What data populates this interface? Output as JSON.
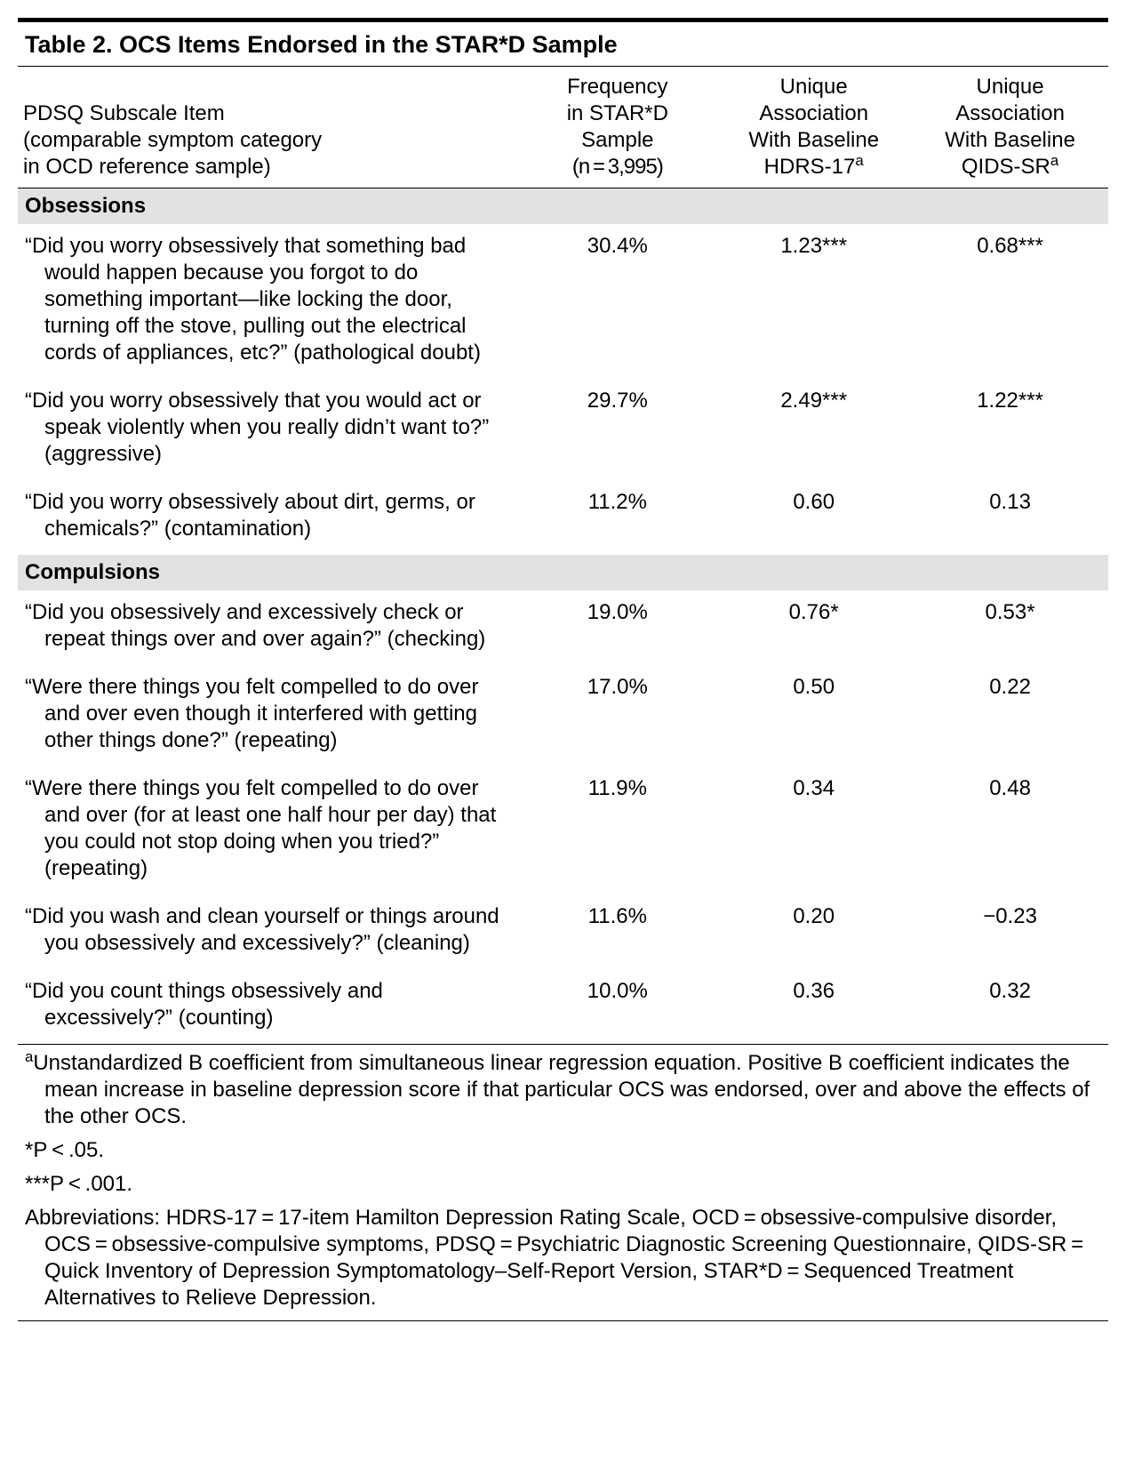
{
  "table": {
    "title": "Table 2. OCS Items Endorsed in the STAR*D Sample",
    "columns": {
      "item_lines": [
        "PDSQ Subscale Item",
        "(comparable symptom category",
        "in OCD reference sample)"
      ],
      "freq_lines": [
        "Frequency",
        "in STAR*D",
        "Sample",
        "(n = 3,995)"
      ],
      "hdrs_lines": [
        "Unique",
        "Association",
        "With Baseline",
        "HDRS-17"
      ],
      "qids_lines": [
        "Unique",
        "Association",
        "With Baseline",
        "QIDS-SR"
      ],
      "super_a": "a"
    },
    "widths": {
      "item": "46%",
      "freq": "18%",
      "hdrs": "18%",
      "qids": "18%"
    },
    "sections": [
      {
        "label": "Obsessions",
        "rows": [
          {
            "item": "“Did you worry obsessively that something bad would happen because you forgot to do something important—like locking the door, turning off the stove, pulling out the electrical cords of appliances, etc?” (pathological doubt)",
            "freq": "30.4%",
            "hdrs": "1.23***",
            "qids": "0.68***"
          },
          {
            "item": "“Did you worry obsessively that you would act or speak violently when you really didn’t want to?” (aggressive)",
            "freq": "29.7%",
            "hdrs": "2.49***",
            "qids": "1.22***"
          },
          {
            "item": "“Did you worry obsessively about dirt, germs, or chemicals?” (contamination)",
            "freq": "11.2%",
            "hdrs": "0.60",
            "qids": "0.13"
          }
        ]
      },
      {
        "label": "Compulsions",
        "rows": [
          {
            "item": "“Did you obsessively and excessively check or repeat things over and over again?” (checking)",
            "freq": "19.0%",
            "hdrs": "0.76*",
            "qids": "0.53*"
          },
          {
            "item": "“Were there things you felt compelled to do over and over even though it interfered with getting other things done?” (repeating)",
            "freq": "17.0%",
            "hdrs": "0.50",
            "qids": "0.22"
          },
          {
            "item": "“Were there things you felt compelled to do over and over (for at least one half hour per day) that you could not stop doing when you tried?” (repeating)",
            "freq": "11.9%",
            "hdrs": "0.34",
            "qids": "0.48"
          },
          {
            "item": "“Did you wash and clean yourself or things around you obsessively and excessively?” (cleaning)",
            "freq": "11.6%",
            "hdrs": "0.20",
            "qids": "−0.23"
          },
          {
            "item": "“Did you count things obsessively and excessively?” (counting)",
            "freq": "10.0%",
            "hdrs": "0.36",
            "qids": "0.32"
          }
        ]
      }
    ],
    "footnotes": [
      {
        "lead_super": "a",
        "text": "Unstandardized B coefficient from simultaneous linear regression equation. Positive B coefficient indicates the mean increase in baseline depression score if that particular OCS was endorsed, over and above the effects of the other OCS."
      },
      {
        "text": "*P < .05."
      },
      {
        "text": "***P < .001."
      },
      {
        "text": "Abbreviations: HDRS-17 = 17-item Hamilton Depression Rating Scale, OCD = obsessive-compulsive disorder, OCS = obsessive-compulsive symptoms, PDSQ = Psychiatric Diagnostic Screening Questionnaire, QIDS-SR = Quick Inventory of Depression Symptomatology–Self-Report Version, STAR*D = Sequenced Treatment Alternatives to Relieve Depression."
      }
    ]
  }
}
